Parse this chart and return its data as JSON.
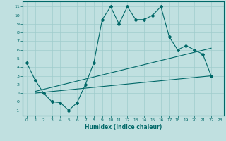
{
  "xlabel": "Humidex (Indice chaleur)",
  "bg_color": "#c0e0e0",
  "grid_color": "#a0cccc",
  "line_color": "#006868",
  "xlim": [
    -0.5,
    23.5
  ],
  "ylim": [
    -1.6,
    11.6
  ],
  "xticks": [
    0,
    1,
    2,
    3,
    4,
    5,
    6,
    7,
    8,
    9,
    10,
    11,
    12,
    13,
    14,
    15,
    16,
    17,
    18,
    19,
    20,
    21,
    22,
    23
  ],
  "yticks": [
    -1,
    0,
    1,
    2,
    3,
    4,
    5,
    6,
    7,
    8,
    9,
    10,
    11
  ],
  "line1_x": [
    0,
    1,
    2,
    3,
    4,
    5,
    6,
    7,
    8,
    9,
    10,
    11,
    12,
    13,
    14,
    15,
    16,
    17,
    18,
    19,
    20,
    21,
    22
  ],
  "line1_y": [
    4.5,
    2.5,
    1.0,
    0.0,
    -0.1,
    -1.0,
    -0.1,
    2.0,
    4.5,
    9.5,
    11.0,
    9.0,
    11.0,
    9.5,
    9.5,
    10.0,
    11.0,
    7.5,
    6.0,
    6.5,
    6.0,
    5.5,
    3.0
  ],
  "line2_x": [
    1,
    22
  ],
  "line2_y": [
    1.0,
    3.0
  ],
  "line3_x": [
    1,
    22
  ],
  "line3_y": [
    1.2,
    6.2
  ]
}
